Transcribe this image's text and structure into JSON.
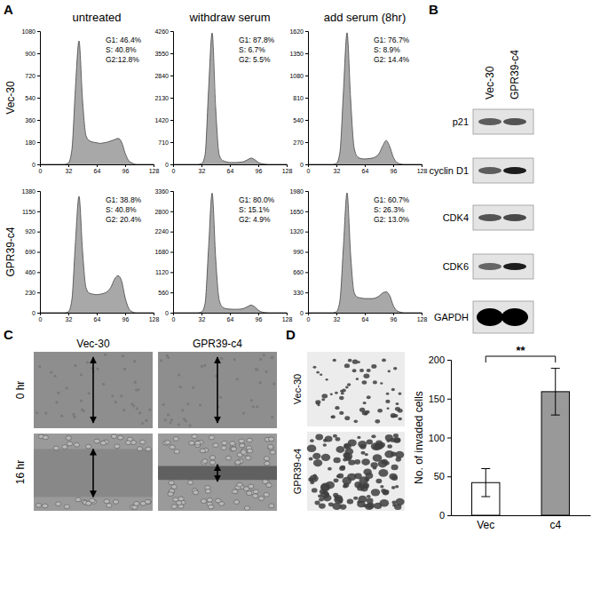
{
  "chart_data": [
    {
      "type": "area",
      "color": "#a8a8a8",
      "x": [
        0,
        4,
        8,
        12,
        16,
        20,
        24,
        28,
        32,
        36,
        40,
        44,
        48,
        52,
        56,
        60,
        64,
        68,
        72,
        76,
        80,
        84,
        88,
        92,
        96,
        100,
        104,
        108,
        112,
        116,
        120,
        124,
        128
      ],
      "values": [
        0,
        0,
        0,
        0,
        0,
        0,
        0,
        0,
        10,
        120,
        620,
        1000,
        520,
        230,
        190,
        180,
        175,
        170,
        175,
        180,
        190,
        200,
        210,
        180,
        90,
        30,
        10,
        0,
        0,
        0,
        0,
        0,
        0
      ],
      "xlim": [
        0,
        128
      ],
      "xticks": [
        0,
        32,
        64,
        96,
        128
      ],
      "ylim": [
        0,
        1080
      ],
      "yticks": [
        0,
        180,
        360,
        540,
        720,
        900,
        1080
      ],
      "annotations": [
        "G1: 46.4%",
        "S: 40.8%",
        "G2:12.8%"
      ]
    },
    {
      "type": "area",
      "color": "#a8a8a8",
      "x": [
        0,
        4,
        8,
        12,
        16,
        20,
        24,
        28,
        32,
        36,
        40,
        44,
        48,
        52,
        56,
        60,
        64,
        68,
        72,
        76,
        80,
        84,
        88,
        92,
        96,
        100,
        104,
        108,
        112,
        116,
        120,
        124,
        128
      ],
      "values": [
        0,
        0,
        0,
        0,
        0,
        0,
        0,
        0,
        20,
        300,
        2400,
        4200,
        1800,
        300,
        120,
        80,
        60,
        60,
        60,
        70,
        90,
        150,
        200,
        150,
        60,
        20,
        5,
        0,
        0,
        0,
        0,
        0,
        0
      ],
      "xlim": [
        0,
        128
      ],
      "xticks": [
        0,
        32,
        64,
        96,
        128
      ],
      "ylim": [
        0,
        4260
      ],
      "yticks": [
        0,
        710,
        1420,
        2130,
        2840,
        3550,
        4260
      ],
      "annotations": [
        "G1: 87.8%",
        "S: 6.7%",
        "G2: 5.5%"
      ]
    },
    {
      "type": "area",
      "color": "#a8a8a8",
      "x": [
        0,
        4,
        8,
        12,
        16,
        20,
        24,
        28,
        32,
        36,
        40,
        44,
        48,
        52,
        56,
        60,
        64,
        68,
        72,
        76,
        80,
        84,
        88,
        92,
        96,
        100,
        104,
        108,
        112,
        116,
        120,
        124,
        128
      ],
      "values": [
        0,
        0,
        0,
        0,
        0,
        0,
        0,
        0,
        10,
        150,
        900,
        1600,
        800,
        200,
        90,
        70,
        65,
        70,
        75,
        90,
        130,
        220,
        290,
        220,
        90,
        25,
        5,
        0,
        0,
        0,
        0,
        0,
        0
      ],
      "xlim": [
        0,
        128
      ],
      "xticks": [
        0,
        32,
        64,
        96,
        128
      ],
      "ylim": [
        0,
        1620
      ],
      "yticks": [
        0,
        270,
        540,
        810,
        1080,
        1350,
        1620
      ],
      "annotations": [
        "G1: 76.7%",
        "S: 8.9%",
        "G2: 14.4%"
      ]
    },
    {
      "type": "area",
      "color": "#a8a8a8",
      "x": [
        0,
        4,
        8,
        12,
        16,
        20,
        24,
        28,
        32,
        36,
        40,
        44,
        48,
        52,
        56,
        60,
        64,
        68,
        72,
        76,
        80,
        84,
        88,
        92,
        96,
        100,
        104,
        108,
        112,
        116,
        120,
        124,
        128
      ],
      "values": [
        0,
        0,
        0,
        0,
        0,
        0,
        0,
        0,
        10,
        150,
        800,
        1320,
        700,
        280,
        220,
        210,
        205,
        210,
        220,
        240,
        290,
        380,
        420,
        360,
        170,
        50,
        10,
        0,
        0,
        0,
        0,
        0,
        0
      ],
      "xlim": [
        0,
        128
      ],
      "xticks": [
        0,
        32,
        64,
        96,
        128
      ],
      "ylim": [
        0,
        1380
      ],
      "yticks": [
        0,
        230,
        460,
        690,
        920,
        1150,
        1380
      ],
      "annotations": [
        "G1: 38.8%",
        "S: 40.8%",
        "G2: 20.4%"
      ]
    },
    {
      "type": "area",
      "color": "#a8a8a8",
      "x": [
        0,
        4,
        8,
        12,
        16,
        20,
        24,
        28,
        32,
        36,
        40,
        44,
        48,
        52,
        56,
        60,
        64,
        68,
        72,
        76,
        80,
        84,
        88,
        92,
        96,
        100,
        104,
        108,
        112,
        116,
        120,
        124,
        128
      ],
      "values": [
        0,
        0,
        0,
        0,
        0,
        0,
        0,
        0,
        20,
        250,
        1800,
        3300,
        1500,
        350,
        150,
        110,
        100,
        95,
        95,
        100,
        120,
        170,
        210,
        160,
        70,
        20,
        5,
        0,
        0,
        0,
        0,
        0,
        0
      ],
      "xlim": [
        0,
        128
      ],
      "xticks": [
        0,
        32,
        64,
        96,
        128
      ],
      "ylim": [
        0,
        3360
      ],
      "yticks": [
        0,
        560,
        1120,
        1680,
        2240,
        2800,
        3360
      ],
      "annotations": [
        "G1: 80.0%",
        "S: 15.1%",
        "G2: 4.9%"
      ]
    },
    {
      "type": "area",
      "color": "#a8a8a8",
      "x": [
        0,
        4,
        8,
        12,
        16,
        20,
        24,
        28,
        32,
        36,
        40,
        44,
        48,
        52,
        56,
        60,
        64,
        68,
        72,
        76,
        80,
        84,
        88,
        92,
        96,
        100,
        104,
        108,
        112,
        116,
        120,
        124,
        128
      ],
      "values": [
        0,
        0,
        0,
        0,
        0,
        0,
        0,
        0,
        15,
        200,
        1100,
        1950,
        950,
        330,
        250,
        240,
        230,
        230,
        230,
        240,
        270,
        320,
        340,
        280,
        120,
        35,
        10,
        0,
        0,
        0,
        0,
        0,
        0
      ],
      "xlim": [
        0,
        128
      ],
      "xticks": [
        0,
        32,
        64,
        96,
        128
      ],
      "ylim": [
        0,
        1980
      ],
      "yticks": [
        0,
        330,
        660,
        990,
        1320,
        1650,
        1980
      ],
      "annotations": [
        "G1: 60.7%",
        "S: 26.3%",
        "G2: 13.0%"
      ]
    },
    {
      "type": "bar",
      "categories": [
        "Vec",
        "c4"
      ],
      "values": [
        42,
        159
      ],
      "errors": [
        18,
        30
      ],
      "colors": [
        "#ffffff",
        "#999999"
      ],
      "ylim": [
        0,
        200
      ],
      "yticks": [
        0,
        50,
        100,
        150,
        200
      ],
      "y_label": "No. of invaded cells",
      "annotations": [
        "**"
      ]
    }
  ],
  "panel_a": {
    "label": "A",
    "columns": [
      "untreated",
      "withdraw serum",
      "add serum (8hr)"
    ],
    "rows": [
      "Vec-30",
      "GPR39-c4"
    ]
  },
  "panel_b": {
    "label": "B",
    "columns": [
      "Vec-30",
      "GPR39-c4"
    ],
    "rows": [
      "p21",
      "cyclin D1",
      "CDK4",
      "CDK6",
      "GAPDH"
    ]
  },
  "panel_c": {
    "label": "C",
    "columns": [
      "Vec-30",
      "GPR39-c4"
    ],
    "rows": [
      "0 hr",
      "16 hr"
    ]
  },
  "panel_d": {
    "label": "D",
    "rows": [
      "Vec-30",
      "GPR39-c4"
    ]
  }
}
